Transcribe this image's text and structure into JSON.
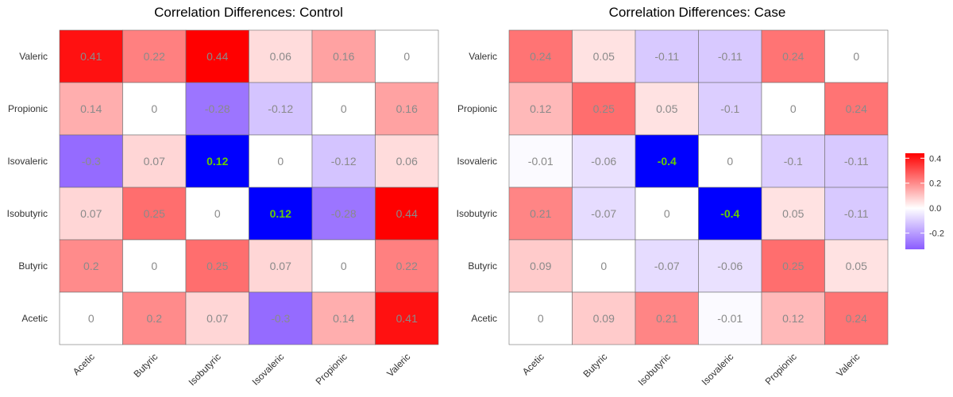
{
  "chart_data": [
    {
      "type": "heatmap",
      "title": "Correlation Differences: Control",
      "x_categories": [
        "Acetic",
        "Butyric",
        "Isobutyric",
        "Isovaleric",
        "Propionic",
        "Valeric"
      ],
      "y_categories": [
        "Acetic",
        "Butyric",
        "Isobutyric",
        "Isovaleric",
        "Propionic",
        "Valeric"
      ],
      "rows": [
        {
          "y": "Valeric",
          "values": [
            0.41,
            0.22,
            0.44,
            0.06,
            0.16,
            0
          ],
          "labels": [
            "0.41",
            "0.22",
            "0.44",
            "0.06",
            "0.16",
            "0"
          ]
        },
        {
          "y": "Propionic",
          "values": [
            0.14,
            0,
            -0.28,
            -0.12,
            0,
            0.16
          ],
          "labels": [
            "0.14",
            "0",
            "-0.28",
            "-0.12",
            "0",
            "0.16"
          ]
        },
        {
          "y": "Isovaleric",
          "values": [
            -0.3,
            0.07,
            0.12,
            0,
            -0.12,
            0.06
          ],
          "labels": [
            "-0.3",
            "0.07",
            "0.12",
            "0",
            "-0.12",
            "0.06"
          ]
        },
        {
          "y": "Isobutyric",
          "values": [
            0.07,
            0.25,
            0,
            0.12,
            -0.28,
            0.44
          ],
          "labels": [
            "0.07",
            "0.25",
            "0",
            "0.12",
            "-0.28",
            "0.44"
          ]
        },
        {
          "y": "Butyric",
          "values": [
            0.2,
            0,
            0.25,
            0.07,
            0,
            0.22
          ],
          "labels": [
            "0.2",
            "0",
            "0.25",
            "0.07",
            "0",
            "0.22"
          ]
        },
        {
          "y": "Acetic",
          "values": [
            0,
            0.2,
            0.07,
            -0.3,
            0.14,
            0.41
          ],
          "labels": [
            "0",
            "0.2",
            "0.07",
            "-0.3",
            "0.14",
            "0.41"
          ]
        }
      ],
      "highlighted": [
        {
          "y": "Isovaleric",
          "x": "Isobutyric"
        },
        {
          "y": "Isobutyric",
          "x": "Isovaleric"
        }
      ]
    },
    {
      "type": "heatmap",
      "title": "Correlation Differences: Case",
      "x_categories": [
        "Acetic",
        "Butyric",
        "Isobutyric",
        "Isovaleric",
        "Propionic",
        "Valeric"
      ],
      "y_categories": [
        "Acetic",
        "Butyric",
        "Isobutyric",
        "Isovaleric",
        "Propionic",
        "Valeric"
      ],
      "rows": [
        {
          "y": "Valeric",
          "values": [
            0.24,
            0.05,
            -0.11,
            -0.11,
            0.24,
            0
          ],
          "labels": [
            "0.24",
            "0.05",
            "-0.11",
            "-0.11",
            "0.24",
            "0"
          ]
        },
        {
          "y": "Propionic",
          "values": [
            0.12,
            0.25,
            0.05,
            -0.1,
            0,
            0.24
          ],
          "labels": [
            "0.12",
            "0.25",
            "0.05",
            "-0.1",
            "0",
            "0.24"
          ]
        },
        {
          "y": "Isovaleric",
          "values": [
            -0.01,
            -0.06,
            -0.4,
            0,
            -0.1,
            -0.11
          ],
          "labels": [
            "-0.01",
            "-0.06",
            "-0.4",
            "0",
            "-0.1",
            "-0.11"
          ]
        },
        {
          "y": "Isobutyric",
          "values": [
            0.21,
            -0.07,
            0,
            -0.4,
            0.05,
            -0.11
          ],
          "labels": [
            "0.21",
            "-0.07",
            "0",
            "-0.4",
            "0.05",
            "-0.11"
          ]
        },
        {
          "y": "Butyric",
          "values": [
            0.09,
            0,
            -0.07,
            -0.06,
            0.25,
            0.05
          ],
          "labels": [
            "0.09",
            "0",
            "-0.07",
            "-0.06",
            "0.25",
            "0.05"
          ]
        },
        {
          "y": "Acetic",
          "values": [
            0,
            0.09,
            0.21,
            -0.01,
            0.12,
            0.24
          ],
          "labels": [
            "0",
            "0.09",
            "0.21",
            "-0.01",
            "0.12",
            "0.24"
          ]
        }
      ],
      "highlighted": [
        {
          "y": "Isovaleric",
          "x": "Isobutyric"
        },
        {
          "y": "Isobutyric",
          "x": "Isovaleric"
        }
      ]
    }
  ],
  "legend": {
    "ticks": [
      "0.4",
      "0.2",
      "0.0",
      "-0.2"
    ],
    "tick_values": [
      0.4,
      0.2,
      0.0,
      -0.2
    ],
    "range": [
      -0.33,
      0.44
    ],
    "placement": "right"
  },
  "colors": {
    "high": "#ff0000",
    "mid": "#ffffff",
    "low": "#8a5cff",
    "highlight_fill": "#0000ff",
    "highlight_text": "#66cc00",
    "cell_text": "#8a8a8a",
    "cell_border": "#6e6e6e"
  }
}
